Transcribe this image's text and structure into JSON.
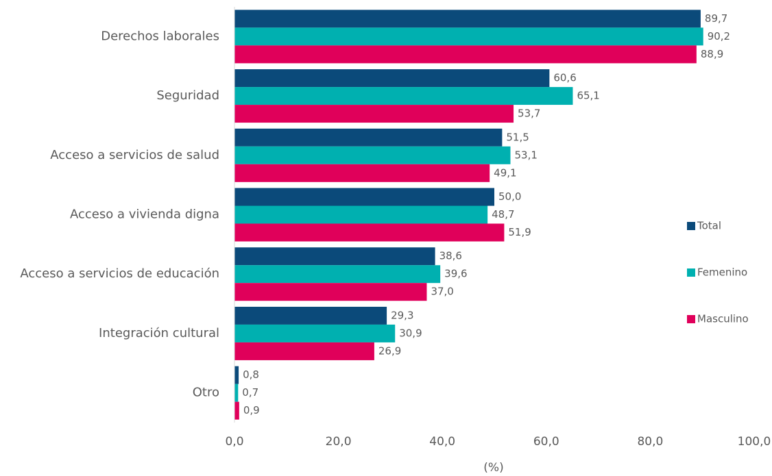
{
  "chart_data": {
    "type": "bar",
    "orientation": "horizontal",
    "categories": [
      "Derechos laborales",
      "Seguridad",
      "Acceso a servicios de salud",
      "Acceso a vivienda digna",
      "Acceso a servicios de educación",
      "Integración cultural",
      "Otro"
    ],
    "series": [
      {
        "name": "Total",
        "color": "#0b4a7a",
        "values": [
          89.7,
          60.6,
          51.5,
          50.0,
          38.6,
          29.3,
          0.8
        ],
        "value_labels": [
          "89,7",
          "60,6",
          "51,5",
          "50,0",
          "38,6",
          "29,3",
          "0,8"
        ]
      },
      {
        "name": "Femenino",
        "color": "#00b0b0",
        "values": [
          90.2,
          65.1,
          53.1,
          48.7,
          39.6,
          30.9,
          0.7
        ],
        "value_labels": [
          "90,2",
          "65,1",
          "53,1",
          "48,7",
          "39,6",
          "30,9",
          "0,7"
        ]
      },
      {
        "name": "Masculino",
        "color": "#e0005a",
        "values": [
          88.9,
          53.7,
          49.1,
          51.9,
          37.0,
          26.9,
          0.9
        ],
        "value_labels": [
          "88,9",
          "53,7",
          "49,1",
          "51,9",
          "37,0",
          "26,9",
          "0,9"
        ]
      }
    ],
    "xlabel": "(%)",
    "xlim": [
      0,
      100
    ],
    "xticks": [
      {
        "value": 0,
        "label": "0,0"
      },
      {
        "value": 20,
        "label": "20,0"
      },
      {
        "value": 40,
        "label": "40,0"
      },
      {
        "value": 60,
        "label": "60,0"
      },
      {
        "value": 80,
        "label": "80,0"
      },
      {
        "value": 100,
        "label": "100,0"
      }
    ],
    "legend": "right",
    "grid": false
  }
}
